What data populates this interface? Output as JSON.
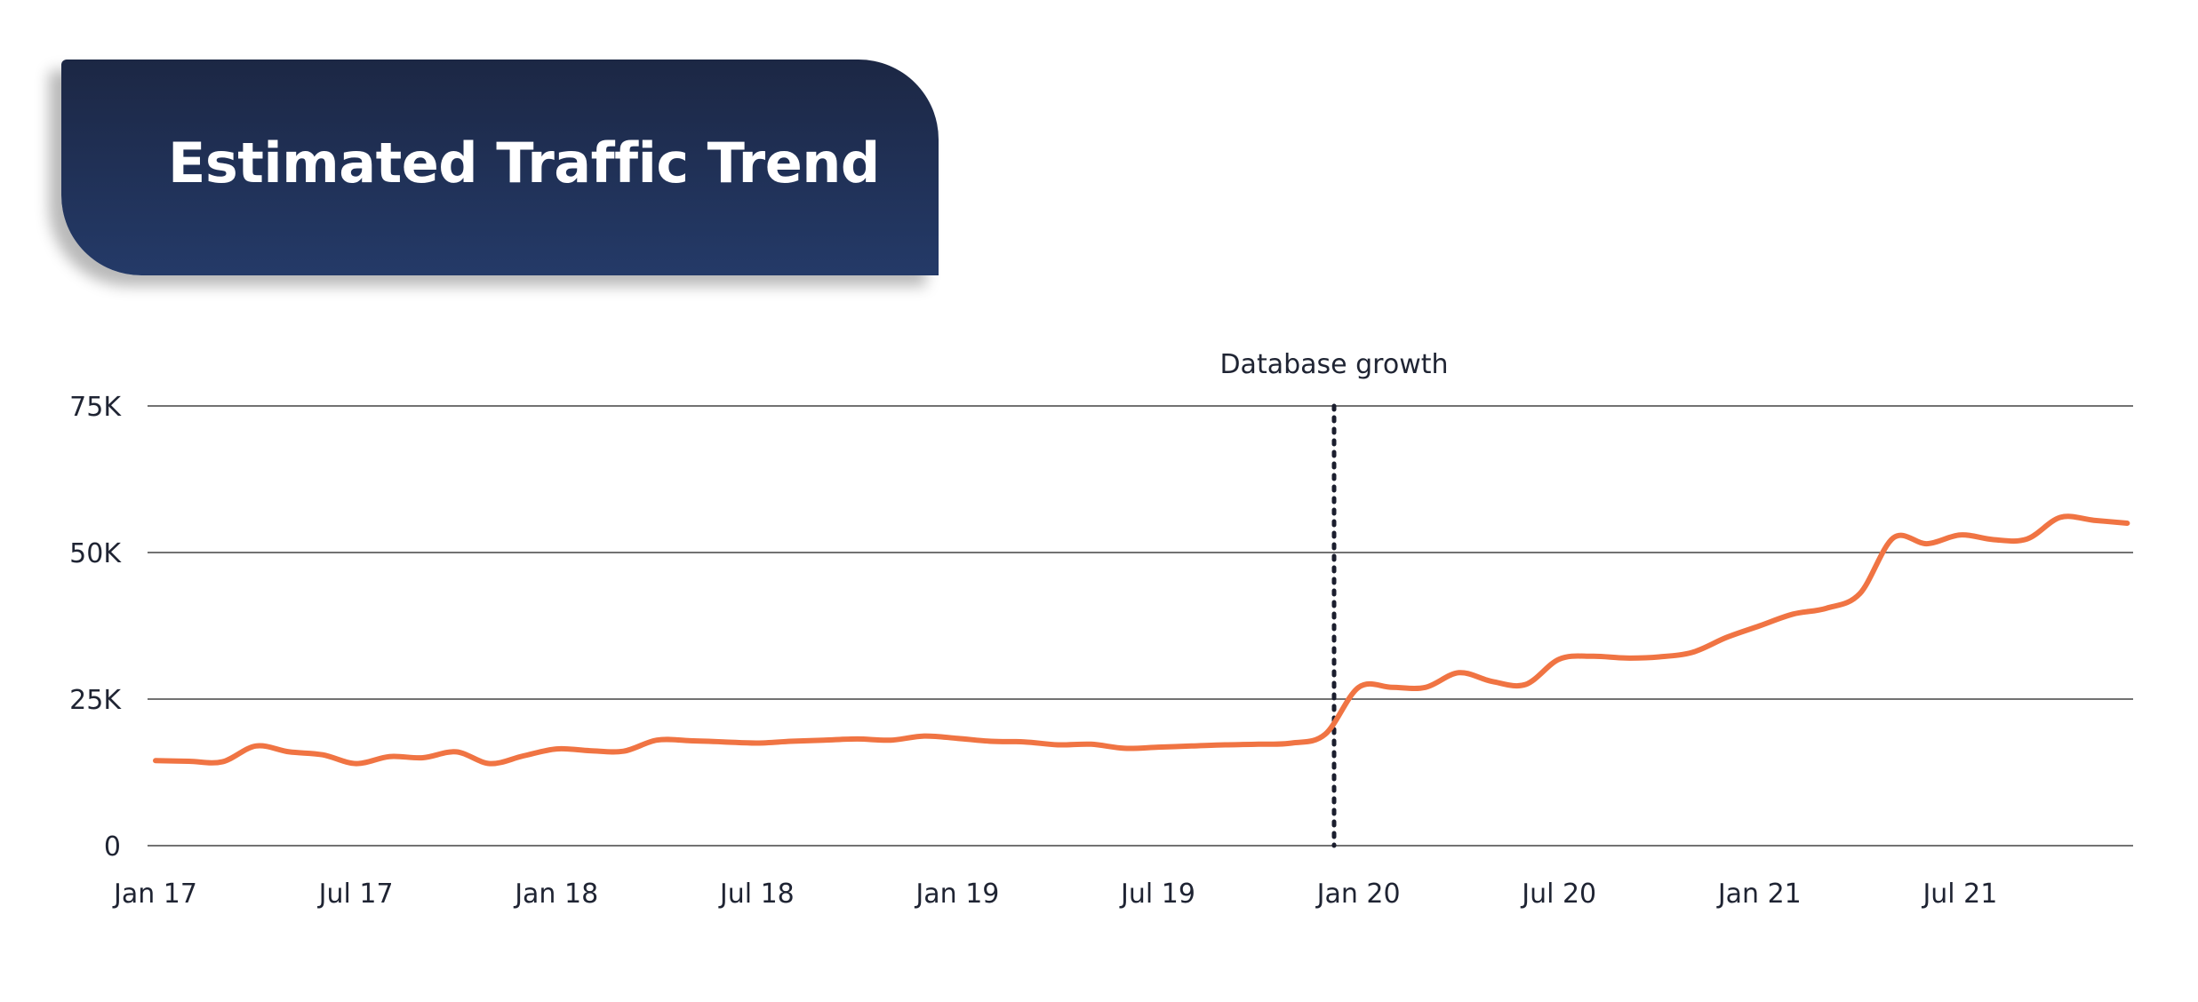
{
  "title": "Estimated Traffic Trend",
  "chart_data": {
    "type": "line",
    "title": "Estimated Traffic Trend",
    "xlabel": "",
    "ylabel": "",
    "grid": true,
    "ylim": [
      0,
      75000
    ],
    "y_ticks": [
      0,
      25000,
      50000,
      75000
    ],
    "y_tick_labels": [
      "0",
      "25K",
      "50K",
      "75K"
    ],
    "xlim": [
      "2017-01",
      "2021-12"
    ],
    "x_ticks": [
      "2017-01",
      "2017-07",
      "2018-01",
      "2018-07",
      "2019-01",
      "2019-07",
      "2020-01",
      "2020-07",
      "2021-01",
      "2021-07"
    ],
    "x_tick_labels": [
      "Jan 17",
      "Jul 17",
      "Jan 18",
      "Jul 18",
      "Jan 19",
      "Jul 19",
      "Jan 20",
      "Jul 20",
      "Jan 21",
      "Jul 21"
    ],
    "colors": {
      "series": "#f07443",
      "grid": "#444444",
      "annotation": "#1b1e2e"
    },
    "series": [
      {
        "x": [
          "2017-01",
          "2017-02",
          "2017-03",
          "2017-04",
          "2017-05",
          "2017-06",
          "2017-07",
          "2017-08",
          "2017-09",
          "2017-10",
          "2017-11",
          "2017-12",
          "2018-01",
          "2018-02",
          "2018-03",
          "2018-04",
          "2018-05",
          "2018-06",
          "2018-07",
          "2018-08",
          "2018-09",
          "2018-10",
          "2018-11",
          "2018-12",
          "2019-01",
          "2019-02",
          "2019-03",
          "2019-04",
          "2019-05",
          "2019-06",
          "2019-07",
          "2019-08",
          "2019-09",
          "2019-10",
          "2019-11",
          "2019-12",
          "2020-01",
          "2020-02",
          "2020-03",
          "2020-04",
          "2020-05",
          "2020-06",
          "2020-07",
          "2020-08",
          "2020-09",
          "2020-10",
          "2020-11",
          "2020-12",
          "2021-01",
          "2021-02",
          "2021-03",
          "2021-04",
          "2021-05",
          "2021-06",
          "2021-07",
          "2021-08",
          "2021-09",
          "2021-10",
          "2021-11",
          "2021-12"
        ],
        "values": [
          14500,
          14400,
          14300,
          17000,
          16000,
          15500,
          14000,
          15200,
          15000,
          16000,
          14000,
          15300,
          16500,
          16200,
          16100,
          18000,
          17900,
          17700,
          17500,
          17800,
          18000,
          18200,
          18000,
          18700,
          18300,
          17800,
          17700,
          17200,
          17300,
          16600,
          16800,
          17000,
          17200,
          17300,
          17500,
          19000,
          27000,
          27000,
          27000,
          29500,
          28000,
          27500,
          31800,
          32300,
          32000,
          32200,
          33000,
          35500,
          37500,
          39500,
          40500,
          43000,
          52500,
          51500,
          53000,
          52200,
          52300,
          56000,
          55500,
          55000
        ]
      }
    ],
    "annotations": [
      {
        "x": "2019-12",
        "label": "Database growth",
        "style": "dotted-vertical-line"
      }
    ]
  }
}
